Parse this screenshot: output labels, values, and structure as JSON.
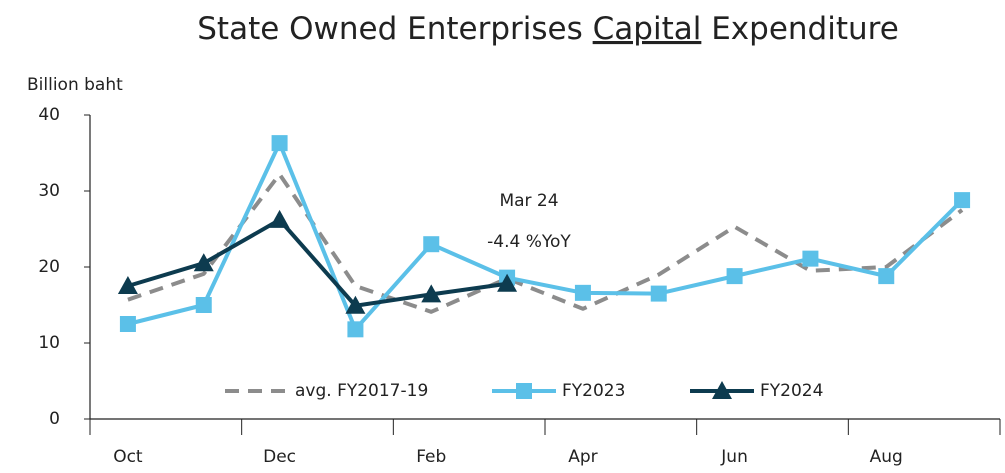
{
  "chart_data": {
    "type": "line",
    "title": [
      "State Owned Enterprises",
      "Capital",
      "Expenditure"
    ],
    "y_axis_label": "Billion baht",
    "annotations": [
      "Mar 24",
      "-4.4 %YoY"
    ],
    "categories": [
      "Oct",
      null,
      "Dec",
      null,
      "Feb",
      null,
      "Apr",
      null,
      "Jun",
      null,
      "Aug",
      null
    ],
    "series": [
      {
        "name": "avg. FY2017-19",
        "color": "#8c8c8c",
        "style": "dashed",
        "marker": "none",
        "values": [
          15.7,
          19.1,
          32.2,
          17.5,
          14.1,
          18.5,
          14.5,
          19.0,
          25.3,
          19.5,
          20.0,
          27.5
        ]
      },
      {
        "name": "FY2023",
        "color": "#5bc0e8",
        "style": "solid",
        "marker": "square",
        "values": [
          12.5,
          15.0,
          36.3,
          11.8,
          23.0,
          18.6,
          16.6,
          16.5,
          18.8,
          21.1,
          18.8,
          28.8
        ]
      },
      {
        "name": "FY2024",
        "color": "#0d3b4f",
        "style": "solid",
        "marker": "triangle",
        "values": [
          17.5,
          20.5,
          26.2,
          14.9,
          16.4,
          17.8,
          null,
          null,
          null,
          null,
          null,
          null
        ]
      }
    ],
    "ylim": [
      0,
      40
    ],
    "yticks": [
      0,
      10,
      20,
      30,
      40
    ],
    "grid": false,
    "legend": "bottom"
  }
}
